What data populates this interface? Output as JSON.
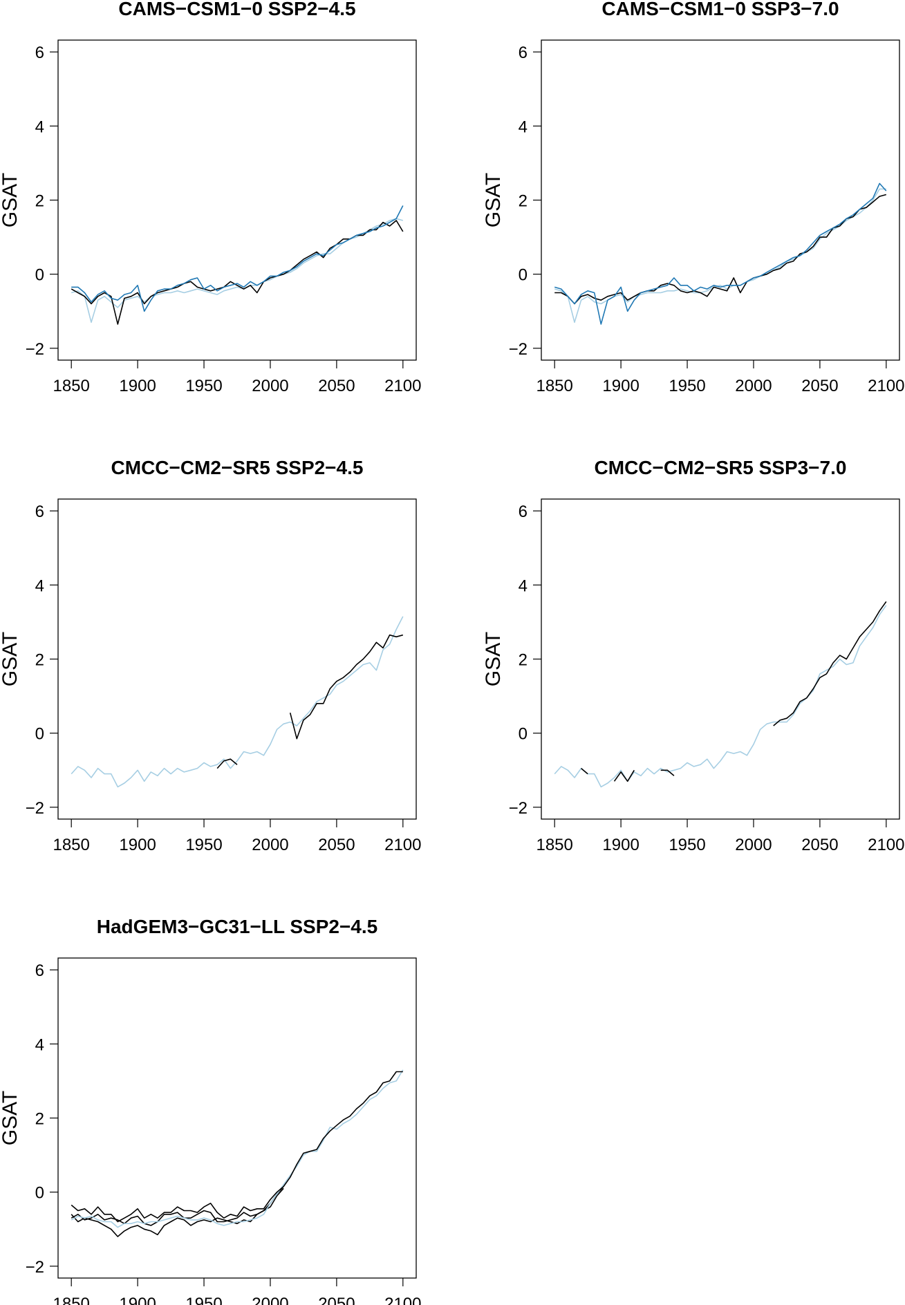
{
  "chart_data": {
    "type": "line",
    "shared": {
      "x": [
        1850,
        1855,
        1860,
        1865,
        1870,
        1875,
        1880,
        1885,
        1890,
        1895,
        1900,
        1905,
        1910,
        1915,
        1920,
        1925,
        1930,
        1935,
        1940,
        1945,
        1950,
        1955,
        1960,
        1965,
        1970,
        1975,
        1980,
        1985,
        1990,
        1995,
        2000,
        2005,
        2010,
        2015,
        2020,
        2025,
        2030,
        2035,
        2040,
        2045,
        2050,
        2055,
        2060,
        2065,
        2070,
        2075,
        2080,
        2085,
        2090,
        2095,
        2100
      ],
      "xlim": [
        1850,
        2100
      ],
      "ylim": [
        -2,
        6
      ],
      "xticks": [
        1850,
        1900,
        1950,
        2000,
        2050,
        2100
      ],
      "yticks": [
        -2,
        0,
        2,
        4,
        6
      ],
      "ylabel": "GSAT",
      "xlabel": "",
      "grid": false,
      "legend": "none"
    },
    "colors": {
      "black": "#000000",
      "light_blue": "#a6cee3",
      "blue": "#1f78b4"
    },
    "panels": [
      {
        "title": "CAMS−CSM1−0 SSP2−4.5",
        "series": [
          {
            "color": "#a6cee3",
            "values": [
              -0.5,
              -0.45,
              -0.6,
              -1.3,
              -0.7,
              -0.6,
              -0.75,
              -0.9,
              -0.7,
              -0.65,
              -0.6,
              -0.75,
              -0.6,
              -0.55,
              -0.5,
              -0.5,
              -0.45,
              -0.5,
              -0.45,
              -0.4,
              -0.45,
              -0.5,
              -0.55,
              -0.45,
              -0.4,
              -0.35,
              -0.4,
              -0.3,
              -0.3,
              -0.2,
              -0.15,
              -0.05,
              0.0,
              0.05,
              0.15,
              0.3,
              0.4,
              0.5,
              0.55,
              0.55,
              0.7,
              0.85,
              0.95,
              1.0,
              1.1,
              1.2,
              1.3,
              1.35,
              1.45,
              1.5,
              1.45
            ]
          },
          {
            "color": "#000000",
            "values": [
              -0.4,
              -0.5,
              -0.6,
              -0.8,
              -0.6,
              -0.5,
              -0.6,
              -1.35,
              -0.65,
              -0.6,
              -0.5,
              -0.8,
              -0.6,
              -0.5,
              -0.45,
              -0.4,
              -0.35,
              -0.25,
              -0.2,
              -0.35,
              -0.4,
              -0.45,
              -0.4,
              -0.35,
              -0.2,
              -0.3,
              -0.4,
              -0.3,
              -0.5,
              -0.2,
              -0.1,
              -0.05,
              0.0,
              0.1,
              0.25,
              0.4,
              0.5,
              0.6,
              0.45,
              0.7,
              0.8,
              0.95,
              0.95,
              1.05,
              1.05,
              1.2,
              1.2,
              1.4,
              1.3,
              1.45,
              1.15
            ]
          },
          {
            "color": "#1f78b4",
            "values": [
              -0.35,
              -0.35,
              -0.5,
              -0.75,
              -0.55,
              -0.45,
              -0.65,
              -0.7,
              -0.55,
              -0.5,
              -0.3,
              -1.0,
              -0.7,
              -0.45,
              -0.4,
              -0.4,
              -0.3,
              -0.25,
              -0.15,
              -0.1,
              -0.4,
              -0.3,
              -0.45,
              -0.35,
              -0.3,
              -0.25,
              -0.35,
              -0.2,
              -0.3,
              -0.2,
              -0.05,
              -0.05,
              0.05,
              0.1,
              0.2,
              0.35,
              0.45,
              0.55,
              0.5,
              0.65,
              0.8,
              0.85,
              0.95,
              1.05,
              1.1,
              1.15,
              1.25,
              1.3,
              1.4,
              1.5,
              1.85
            ]
          }
        ]
      },
      {
        "title": "CAMS−CSM1−0 SSP3−7.0",
        "series": [
          {
            "color": "#a6cee3",
            "values": [
              -0.4,
              -0.45,
              -0.6,
              -1.3,
              -0.7,
              -0.6,
              -0.75,
              -0.8,
              -0.7,
              -0.6,
              -0.55,
              -0.75,
              -0.6,
              -0.55,
              -0.5,
              -0.5,
              -0.5,
              -0.45,
              -0.45,
              -0.4,
              -0.45,
              -0.5,
              -0.5,
              -0.45,
              -0.35,
              -0.3,
              -0.4,
              -0.3,
              -0.3,
              -0.2,
              -0.15,
              -0.05,
              0.0,
              0.1,
              0.2,
              0.35,
              0.4,
              0.5,
              0.6,
              0.7,
              0.95,
              1.1,
              1.2,
              1.3,
              1.45,
              1.55,
              1.65,
              1.8,
              2.0,
              2.3,
              2.3
            ]
          },
          {
            "color": "#000000",
            "values": [
              -0.5,
              -0.5,
              -0.6,
              -0.8,
              -0.6,
              -0.55,
              -0.65,
              -0.7,
              -0.6,
              -0.55,
              -0.5,
              -0.7,
              -0.6,
              -0.5,
              -0.45,
              -0.45,
              -0.3,
              -0.25,
              -0.3,
              -0.45,
              -0.5,
              -0.45,
              -0.5,
              -0.6,
              -0.35,
              -0.4,
              -0.45,
              -0.1,
              -0.5,
              -0.2,
              -0.1,
              -0.05,
              0.0,
              0.1,
              0.15,
              0.3,
              0.35,
              0.55,
              0.6,
              0.75,
              1.0,
              1.0,
              1.25,
              1.3,
              1.5,
              1.55,
              1.75,
              1.8,
              1.95,
              2.1,
              2.15
            ]
          },
          {
            "color": "#1f78b4",
            "values": [
              -0.35,
              -0.4,
              -0.6,
              -0.8,
              -0.55,
              -0.45,
              -0.5,
              -1.35,
              -0.7,
              -0.6,
              -0.35,
              -1.0,
              -0.7,
              -0.5,
              -0.45,
              -0.4,
              -0.35,
              -0.3,
              -0.1,
              -0.3,
              -0.3,
              -0.45,
              -0.35,
              -0.4,
              -0.3,
              -0.35,
              -0.3,
              -0.3,
              -0.3,
              -0.2,
              -0.1,
              -0.05,
              0.05,
              0.15,
              0.25,
              0.35,
              0.45,
              0.5,
              0.65,
              0.85,
              1.05,
              1.15,
              1.25,
              1.35,
              1.5,
              1.6,
              1.75,
              1.9,
              2.05,
              2.45,
              2.25
            ]
          }
        ]
      },
      {
        "title": "CMCC−CM2−SR5 SSP2−4.5",
        "series": [
          {
            "color": "#a6cee3",
            "values": [
              -1.1,
              -0.9,
              -1.0,
              -1.2,
              -0.95,
              -1.1,
              -1.1,
              -1.45,
              -1.35,
              -1.2,
              -1.0,
              -1.3,
              -1.05,
              -1.15,
              -0.95,
              -1.1,
              -0.95,
              -1.05,
              -1.0,
              -0.95,
              -0.8,
              -0.9,
              -0.85,
              -0.7,
              -0.95,
              -0.75,
              -0.5,
              -0.55,
              -0.5,
              -0.6,
              -0.3,
              0.1,
              0.25,
              0.3,
              0.2,
              0.4,
              0.6,
              0.85,
              0.95,
              1.05,
              1.3,
              1.4,
              1.55,
              1.7,
              1.85,
              1.9,
              1.7,
              2.25,
              2.4,
              2.8,
              3.15
            ]
          },
          {
            "color": "#000000",
            "values": [
              null,
              null,
              null,
              null,
              null,
              null,
              null,
              null,
              null,
              null,
              null,
              null,
              null,
              null,
              null,
              null,
              null,
              null,
              null,
              null,
              null,
              null,
              -0.95,
              -0.75,
              -0.7,
              -0.85,
              null,
              null,
              null,
              null,
              null,
              null,
              null,
              0.55,
              -0.15,
              0.35,
              0.5,
              0.8,
              0.8,
              1.2,
              1.4,
              1.5,
              1.65,
              1.85,
              2.0,
              2.2,
              2.45,
              2.3,
              2.65,
              2.6,
              2.65
            ]
          }
        ]
      },
      {
        "title": "CMCC−CM2−SR5 SSP3−7.0",
        "series": [
          {
            "color": "#a6cee3",
            "values": [
              -1.1,
              -0.9,
              -1.0,
              -1.2,
              -0.95,
              -1.1,
              -1.1,
              -1.45,
              -1.35,
              -1.2,
              -1.0,
              -1.3,
              -1.05,
              -1.15,
              -0.95,
              -1.1,
              -0.95,
              -1.05,
              -1.0,
              -0.95,
              -0.8,
              -0.9,
              -0.85,
              -0.7,
              -0.95,
              -0.75,
              -0.5,
              -0.55,
              -0.5,
              -0.6,
              -0.3,
              0.1,
              0.25,
              0.3,
              0.3,
              0.3,
              0.5,
              0.8,
              0.95,
              1.15,
              1.6,
              1.7,
              1.8,
              2.0,
              1.85,
              1.9,
              2.35,
              2.6,
              2.85,
              3.2,
              3.45
            ]
          },
          {
            "color": "#000000",
            "values": [
              null,
              null,
              null,
              null,
              -0.95,
              -1.1,
              null,
              null,
              null,
              -1.3,
              -1.05,
              -1.3,
              -1.0,
              null,
              null,
              null,
              -1.0,
              -1.0,
              -1.15,
              null,
              null,
              null,
              null,
              null,
              null,
              null,
              null,
              null,
              null,
              null,
              null,
              null,
              null,
              0.2,
              0.35,
              0.4,
              0.55,
              0.85,
              0.95,
              1.2,
              1.5,
              1.6,
              1.9,
              2.1,
              2.0,
              2.3,
              2.6,
              2.8,
              3.0,
              3.3,
              3.55
            ]
          }
        ]
      },
      {
        "title": "HadGEM3−GC31−LL SSP2−4.5",
        "series": [
          {
            "color": "#000000",
            "values": [
              -0.6,
              -0.8,
              -0.7,
              -0.75,
              -0.8,
              -0.9,
              -1.0,
              -1.2,
              -1.05,
              -0.95,
              -0.9,
              -1.0,
              -1.05,
              -1.15,
              -0.9,
              -0.8,
              -0.7,
              -0.75,
              -0.9,
              -0.8,
              -0.75,
              -0.8,
              -0.7,
              -0.75,
              -0.8,
              -0.85,
              -0.75,
              -0.8,
              -0.6,
              -0.5,
              -0.4,
              -0.1,
              0.1,
              null,
              null,
              null,
              null,
              null,
              null,
              null,
              null,
              null,
              null,
              null,
              null,
              null,
              null,
              null,
              null,
              null,
              null
            ]
          },
          {
            "color": "#000000",
            "values": [
              -0.7,
              -0.6,
              -0.75,
              -0.7,
              -0.6,
              -0.75,
              -0.7,
              -0.75,
              -0.85,
              -0.7,
              -0.65,
              -0.85,
              -0.9,
              -0.8,
              -0.6,
              -0.6,
              -0.55,
              -0.7,
              -0.7,
              -0.6,
              -0.5,
              -0.55,
              -0.8,
              -0.8,
              -0.75,
              -0.7,
              -0.55,
              -0.65,
              -0.6,
              -0.5,
              -0.3,
              -0.05,
              0.15,
              null,
              null,
              null,
              null,
              null,
              null,
              null,
              null,
              null,
              null,
              null,
              null,
              null,
              null,
              null,
              null,
              null,
              null
            ]
          },
          {
            "color": "#a6cee3",
            "values": [
              -0.75,
              -0.65,
              -0.7,
              -0.65,
              -0.75,
              -0.8,
              -0.8,
              -0.95,
              -0.85,
              -0.85,
              -0.8,
              -0.85,
              -0.8,
              -0.8,
              -0.75,
              -0.7,
              -0.65,
              -0.7,
              -0.75,
              -0.75,
              -0.7,
              -0.75,
              -0.85,
              -0.9,
              -0.85,
              -0.8,
              -0.8,
              -0.75,
              -0.7,
              -0.6,
              -0.3,
              -0.05,
              0.2,
              0.45,
              0.7,
              1.0,
              1.1,
              1.1,
              1.4,
              1.75,
              1.7,
              1.85,
              1.95,
              2.1,
              2.3,
              2.5,
              2.6,
              2.8,
              2.95,
              3.0,
              3.3
            ]
          },
          {
            "color": "#000000",
            "values": [
              -0.35,
              -0.5,
              -0.45,
              -0.6,
              -0.4,
              -0.6,
              -0.6,
              -0.8,
              -0.7,
              -0.6,
              -0.45,
              -0.7,
              -0.6,
              -0.7,
              -0.55,
              -0.55,
              -0.4,
              -0.5,
              -0.5,
              -0.55,
              -0.4,
              -0.3,
              -0.55,
              -0.7,
              -0.6,
              -0.65,
              -0.4,
              -0.5,
              -0.45,
              -0.45,
              -0.2,
              0.0,
              0.15,
              0.4,
              0.75,
              1.05,
              1.1,
              1.15,
              1.45,
              1.65,
              1.8,
              1.95,
              2.05,
              2.25,
              2.4,
              2.6,
              2.7,
              2.95,
              3.0,
              3.25,
              3.25
            ]
          }
        ]
      }
    ]
  }
}
